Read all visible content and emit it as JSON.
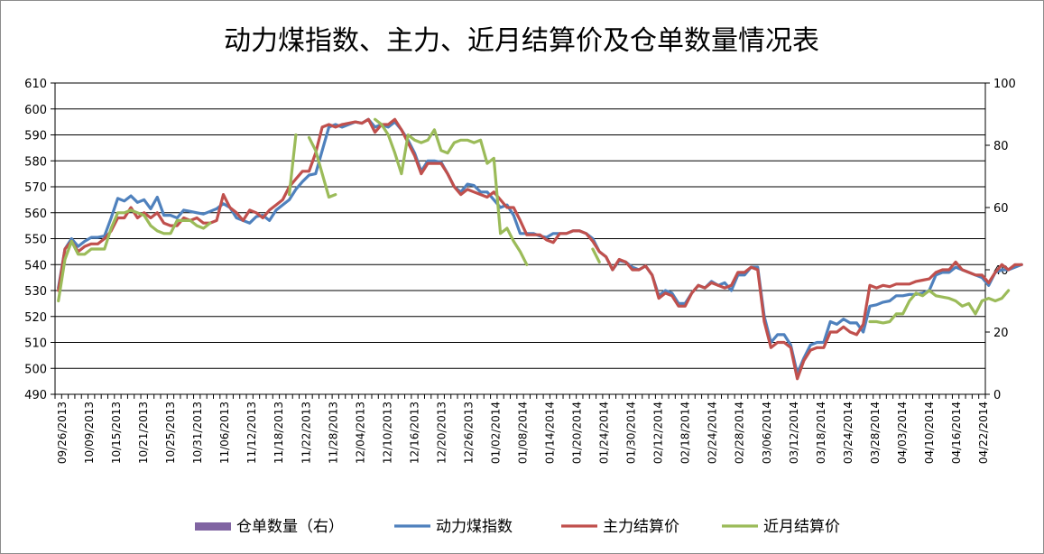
{
  "chart_data": {
    "type": "line",
    "title": "动力煤指数、主力、近月结算价及仓单数量情况表",
    "ylim": [
      490,
      610
    ],
    "y2lim": [
      0,
      100
    ],
    "y_ticks": [
      "490",
      "500",
      "510",
      "520",
      "530",
      "540",
      "550",
      "560",
      "570",
      "580",
      "590",
      "600",
      "610"
    ],
    "y2_ticks": [
      "0",
      "20",
      "40",
      "60",
      "80",
      "100"
    ],
    "x_tick_labels": [
      "09/26/2013",
      "10/09/2013",
      "10/15/2013",
      "10/21/2013",
      "10/25/2013",
      "10/31/2013",
      "11/06/2013",
      "11/12/2013",
      "11/18/2013",
      "11/22/2013",
      "11/28/2013",
      "12/04/2013",
      "12/10/2013",
      "12/16/2013",
      "12/20/2013",
      "12/26/2013",
      "01/02/2014",
      "01/08/2014",
      "01/14/2014",
      "01/20/2014",
      "01/24/2014",
      "01/30/2014",
      "02/12/2014",
      "02/18/2014",
      "02/24/2014",
      "02/28/2014",
      "03/06/2014",
      "03/12/2014",
      "03/18/2014",
      "03/24/2014",
      "03/28/2014",
      "04/03/2014",
      "04/10/2014",
      "04/16/2014",
      "04/22/2014"
    ],
    "n_points": 141,
    "grid": true,
    "legend_position": "bottom",
    "series": [
      {
        "name": "仓单数量（右）",
        "axis": "right",
        "color": "#8064a2",
        "values": []
      },
      {
        "name": "动力煤指数",
        "axis": "left",
        "color": "#4f81bd",
        "values": [
          531,
          546,
          550,
          547,
          549,
          550.5,
          550.5,
          551,
          558,
          565.5,
          564.5,
          566.5,
          564,
          565,
          561.5,
          566,
          559,
          559,
          558,
          561,
          560.5,
          560,
          559.5,
          560.5,
          561.5,
          563.5,
          562,
          558,
          557,
          556,
          558.5,
          559,
          557,
          561,
          563,
          565,
          569,
          572,
          574.5,
          575,
          584,
          593,
          594,
          593,
          594,
          595,
          594.5,
          596,
          593,
          594,
          593,
          595,
          592,
          588,
          583,
          576,
          580,
          580,
          579.5,
          575,
          570,
          568,
          571,
          570.5,
          568,
          568,
          565,
          562,
          563,
          559,
          552,
          552,
          552,
          551,
          550.5,
          552,
          552,
          552,
          553,
          553,
          552,
          550,
          545,
          543,
          538,
          541.5,
          541,
          539,
          538,
          539.5,
          536,
          528,
          530,
          529,
          525,
          525,
          529,
          532,
          531,
          533.5,
          532,
          533,
          530,
          536,
          536,
          539,
          539,
          520,
          510,
          513,
          513,
          509,
          498,
          504,
          509,
          510,
          510,
          518,
          517,
          519,
          517.5,
          517.5,
          514,
          524,
          524.5,
          525.5,
          526,
          528,
          528,
          528.5,
          528.5,
          529,
          530,
          536,
          537,
          537,
          539,
          538,
          537,
          536,
          535,
          532,
          537,
          538,
          538,
          539,
          540
        ]
      },
      {
        "name": "主力结算价",
        "axis": "left",
        "color": "#c0504d",
        "values": [
          530,
          546,
          549,
          545,
          547,
          548,
          548,
          550,
          553,
          558,
          558,
          562,
          558,
          560,
          558,
          560,
          556,
          555,
          555,
          558,
          557,
          558,
          556,
          556,
          557,
          567,
          562,
          560,
          557,
          561,
          560,
          558,
          561,
          563,
          565,
          570,
          573,
          576,
          576,
          583,
          593,
          594,
          593,
          594,
          594.5,
          595,
          594.5,
          596,
          591,
          594,
          594,
          596,
          592,
          587,
          582,
          575,
          579,
          579,
          579,
          575,
          570,
          567,
          569,
          568,
          567,
          566,
          568,
          565,
          562,
          562,
          557,
          551.5,
          551.5,
          551.5,
          549.5,
          548.5,
          552,
          552,
          553,
          553,
          552,
          549,
          545,
          543,
          538,
          542,
          541,
          538,
          538,
          539.5,
          536,
          527,
          529,
          528,
          524,
          524,
          529,
          532,
          531,
          533,
          532,
          531,
          532,
          537,
          537,
          539,
          538,
          518,
          508,
          510,
          510,
          508,
          496,
          503,
          507,
          508,
          508,
          514,
          514,
          516,
          514,
          513,
          517,
          532,
          531,
          532,
          531.5,
          532.5,
          532.5,
          532.5,
          533.5,
          534,
          534.5,
          537,
          538,
          538,
          541,
          538,
          537,
          536,
          536,
          533,
          537,
          540,
          538,
          540,
          540
        ]
      },
      {
        "name": "近月结算价",
        "axis": "left",
        "color": "#9bbb59",
        "values": [
          526,
          542,
          549,
          544,
          544,
          546,
          546,
          546,
          554,
          560,
          560,
          561,
          560,
          559,
          555,
          553,
          552,
          552,
          557,
          557,
          557,
          555,
          554,
          556,
          null,
          null,
          null,
          null,
          null,
          null,
          null,
          null,
          null,
          null,
          null,
          567,
          590,
          null,
          589,
          584,
          575,
          566,
          567,
          null,
          null,
          null,
          null,
          null,
          596,
          594,
          590,
          583,
          575,
          590,
          588,
          587,
          588,
          592,
          584,
          583,
          587,
          588,
          588,
          587,
          588,
          579,
          581,
          552,
          554,
          549,
          545,
          540,
          null,
          null,
          null,
          null,
          null,
          null,
          null,
          null,
          null,
          546,
          541,
          null,
          null,
          null,
          null,
          null,
          null,
          null,
          null,
          null,
          null,
          null,
          null,
          null,
          null,
          null,
          null,
          null,
          null,
          null,
          null,
          null,
          null,
          null,
          null,
          null,
          null,
          null,
          null,
          null,
          null,
          null,
          null,
          null,
          null,
          null,
          null,
          null,
          null,
          null,
          null,
          518,
          518,
          517.5,
          518,
          521,
          521,
          526,
          529,
          528,
          530,
          528,
          527.5,
          527,
          526,
          524,
          525,
          521,
          526,
          527,
          526,
          527,
          530
        ]
      }
    ]
  }
}
